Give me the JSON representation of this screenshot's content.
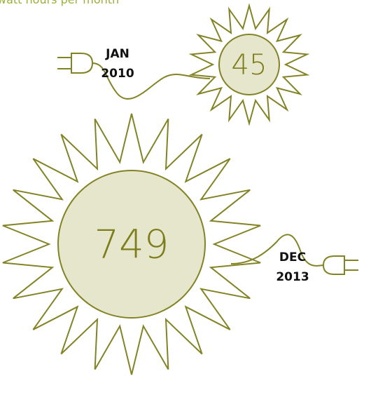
{
  "subtitle": "watt hours per month",
  "items": [
    {
      "month": "JAN",
      "year": "2010",
      "value": "45"
    },
    {
      "month": "DEC",
      "year": "2013",
      "value": "749"
    }
  ]
}
